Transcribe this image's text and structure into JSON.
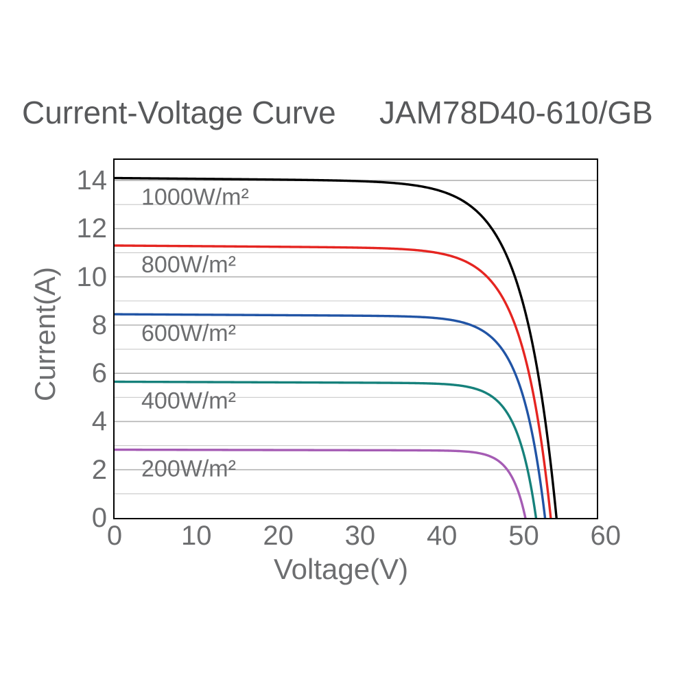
{
  "title": {
    "left": "Current-Voltage Curve",
    "right": "JAM78D40-610/GB"
  },
  "chart_data": {
    "type": "line",
    "title": "Current-Voltage Curve  JAM78D40-610/GB",
    "xlabel": "Voltage(V)",
    "ylabel": "Current(A)",
    "xlim": [
      0,
      60
    ],
    "ylim": [
      0,
      14.85
    ],
    "xticks": [
      0,
      10,
      20,
      30,
      40,
      50,
      60
    ],
    "yticks": [
      0,
      2,
      4,
      6,
      8,
      10,
      12,
      14
    ],
    "grid": {
      "horizontal_step_a": 1,
      "vertical": false
    },
    "legend_position": "inline-labels-left-under-each-curve",
    "series": [
      {
        "label": "1000W/m²",
        "irradiance_w_m2": 1000,
        "color": "#000000",
        "isc_a": 14.1,
        "voc_v": 54.0
      },
      {
        "label": "800W/m²",
        "irradiance_w_m2": 800,
        "color": "#e52521",
        "isc_a": 11.3,
        "voc_v": 53.3
      },
      {
        "label": "600W/m²",
        "irradiance_w_m2": 600,
        "color": "#2154a5",
        "isc_a": 8.45,
        "voc_v": 52.6
      },
      {
        "label": "400W/m²",
        "irradiance_w_m2": 400,
        "color": "#16817b",
        "isc_a": 5.65,
        "voc_v": 51.5
      },
      {
        "label": "200W/m²",
        "irradiance_w_m2": 200,
        "color": "#a55cb4",
        "isc_a": 2.83,
        "voc_v": 50.2
      }
    ]
  },
  "style": {
    "title_color": "#58595b",
    "axis_text_color": "#6d6e70",
    "grid_minor_color": "#c9c9c9",
    "grid_major_color": "#b3b3b3",
    "spine_color": "#000000",
    "background": "#ffffff"
  }
}
